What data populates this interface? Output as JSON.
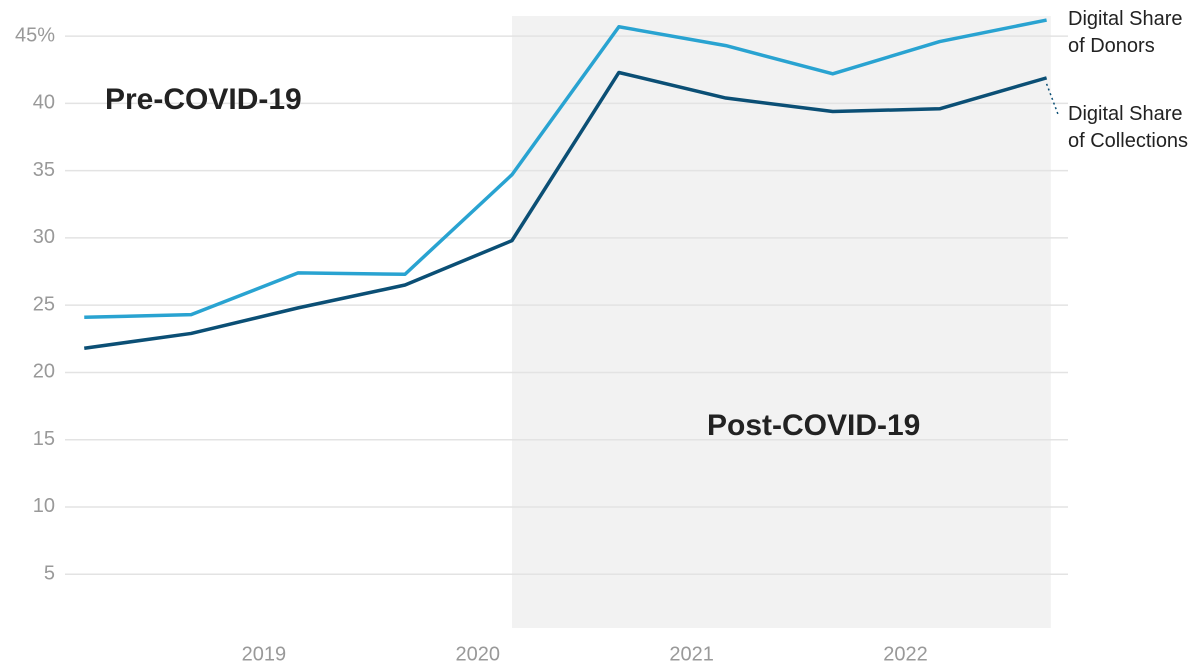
{
  "chart_data": {
    "type": "line",
    "x": [
      2018.16,
      2018.66,
      2019.16,
      2019.66,
      2020.16,
      2020.66,
      2021.16,
      2021.66,
      2022.16,
      2022.66
    ],
    "series": [
      {
        "name": "Digital Share of Donors",
        "color": "#29a3d1",
        "values": [
          24.1,
          24.3,
          27.4,
          27.3,
          34.7,
          45.7,
          44.3,
          42.2,
          44.6,
          46.2
        ]
      },
      {
        "name": "Digital Share of Collections",
        "color": "#0b4f75",
        "values": [
          21.8,
          22.9,
          24.8,
          26.5,
          29.8,
          42.3,
          40.4,
          39.4,
          39.6,
          41.9
        ]
      }
    ],
    "xlim": [
      2018.07,
      2022.76
    ],
    "xticks": [
      2019,
      2020,
      2021,
      2022
    ],
    "ylim": [
      1,
      46.5
    ],
    "yticks": [
      5,
      10,
      15,
      20,
      25,
      30,
      35,
      40,
      {
        "value": 45,
        "label": "45%"
      }
    ],
    "grid": true,
    "annotations": [
      "Pre-COVID-19",
      "Post-COVID-19"
    ],
    "shaded_region": {
      "x": [
        2020.16,
        2022.68
      ],
      "color": "#f2f2f2"
    }
  }
}
